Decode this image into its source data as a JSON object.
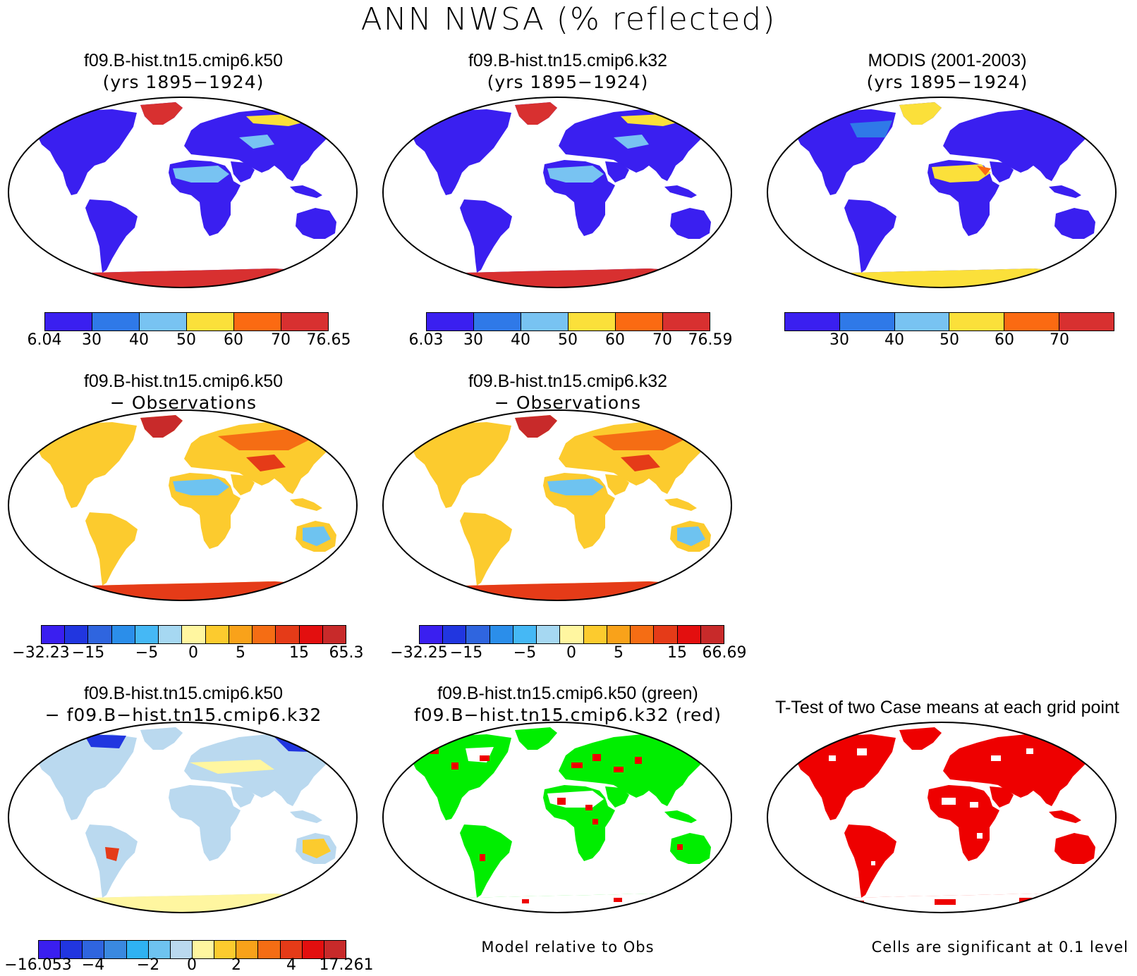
{
  "main_title": "ANN NWSA (% reflected)",
  "colors": {
    "seq": [
      "#3a1ff0",
      "#2f79e8",
      "#78c3f2",
      "#fbe03a",
      "#fb6a12",
      "#d83030"
    ],
    "diff": [
      "#3a1ff0",
      "#2136e0",
      "#2f65df",
      "#2b8eea",
      "#45b8f5",
      "#a6d8f2",
      "#fff6a0",
      "#fccb2e",
      "#f9a21a",
      "#f56d14",
      "#e53b18",
      "#e30f0f",
      "#c82a2a"
    ],
    "diff2": [
      "#3a1ff0",
      "#2136e0",
      "#2f65df",
      "#3a89e0",
      "#2fb2f2",
      "#6ec3f0",
      "#bad9ef",
      "#fff6a0",
      "#fccb2e",
      "#f9a21a",
      "#f56d14",
      "#e53b18",
      "#e30f0f",
      "#c82a2a"
    ],
    "green": "#00ee00",
    "red": "#ee0000"
  },
  "panels": {
    "p1": {
      "title": "f09.B-hist.tn15.cmip6.k50",
      "subtitle": "(yrs 1895−1924)"
    },
    "p2": {
      "title": "f09.B-hist.tn15.cmip6.k32",
      "subtitle": "(yrs 1895−1924)"
    },
    "p3": {
      "title": "MODIS (2001-2003)",
      "subtitle": "(yrs 1895−1924)"
    },
    "p4": {
      "title": "f09.B-hist.tn15.cmip6.k50",
      "subtitle": "− Observations"
    },
    "p5": {
      "title": "f09.B-hist.tn15.cmip6.k32",
      "subtitle": "− Observations"
    },
    "p7": {
      "title": "f09.B-hist.tn15.cmip6.k50",
      "subtitle": "− f09.B−hist.tn15.cmip6.k32"
    },
    "p8": {
      "title": "f09.B-hist.tn15.cmip6.k50 (green)",
      "subtitle": "f09.B−hist.tn15.cmip6.k32 (red)"
    },
    "p9": {
      "title": "T-Test of two Case means at each grid point"
    }
  },
  "colorbars": {
    "cb1": [
      "6.04",
      "30",
      "40",
      "50",
      "60",
      "70",
      "76.65"
    ],
    "cb2": [
      "6.03",
      "30",
      "40",
      "50",
      "60",
      "70",
      "76.59"
    ],
    "cb3": [
      "30",
      "40",
      "50",
      "60",
      "70"
    ],
    "cb4": [
      "−32.23",
      "−15",
      "−5",
      "0",
      "5",
      "15",
      "65.3"
    ],
    "cb5": [
      "−32.25",
      "−15",
      "−5",
      "0",
      "5",
      "15",
      "66.69"
    ],
    "cb7": [
      "−16.053",
      "−4",
      "−2",
      "0",
      "2",
      "4",
      "17.261"
    ]
  },
  "notes": {
    "model_relative": "Model relative to Obs",
    "significance": "Cells are significant at 0.1 level"
  }
}
